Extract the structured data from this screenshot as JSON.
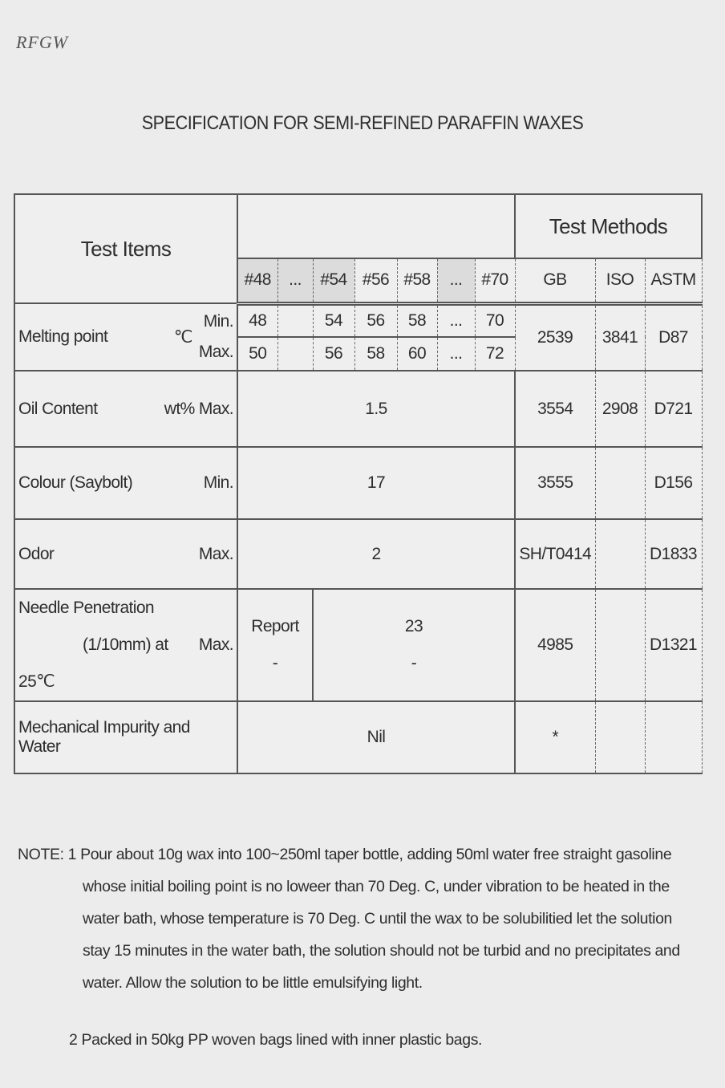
{
  "logo": "RFGW",
  "title": "SPECIFICATION FOR SEMI-REFINED PARAFFIN WAXES",
  "table": {
    "test_items_header": "Test Items",
    "test_methods_header": "Test Methods",
    "grades": [
      "#48",
      "...",
      "#54",
      "#56",
      "#58",
      "...",
      "#70"
    ],
    "methods": [
      "GB",
      "ISO",
      "ASTM"
    ],
    "melting": {
      "label": "Melting point",
      "unit": "℃",
      "min_label": "Min.",
      "max_label": "Max.",
      "min": [
        "48",
        "",
        "54",
        "56",
        "58",
        "...",
        "70"
      ],
      "max": [
        "50",
        "",
        "56",
        "58",
        "60",
        "...",
        "72"
      ],
      "gb": "2539",
      "iso": "3841",
      "astm": "D87"
    },
    "oil": {
      "label": "Oil Content",
      "unit": "wt%",
      "limit": "Max.",
      "value": "1.5",
      "gb": "3554",
      "iso": "2908",
      "astm": "D721"
    },
    "colour": {
      "label": "Colour (Saybolt)",
      "limit": "Min.",
      "value": "17",
      "gb": "3555",
      "iso": "",
      "astm": "D156"
    },
    "odor": {
      "label": "Odor",
      "limit": "Max.",
      "value": "2",
      "gb": "SH/T0414",
      "iso": "",
      "astm": "D1833"
    },
    "needle": {
      "label": "Needle Penetration",
      "label2": "(1/10mm) at 25℃",
      "limit": "Max.",
      "report": "Report",
      "report_sub": "-",
      "value": "23",
      "value_sub": "-",
      "gb": "4985",
      "iso": "",
      "astm": "D1321"
    },
    "mech": {
      "label": "Mechanical Impurity and Water",
      "value": "Nil",
      "gb": "*",
      "iso": "",
      "astm": ""
    }
  },
  "notes": {
    "prefix": "NOTE: 1",
    "n1_lines": [
      "Pour about 10g wax into 100~250ml taper bottle, adding 50ml water free straight gasoline",
      "whose initial boiling point is no loweer than 70 Deg. C, under vibration to be heated in the",
      "water bath, whose temperature is 70 Deg. C until the wax to be solubilitied let the solution",
      "stay 15 minutes in the water bath, the solution should not be turbid and no precipitates and",
      "water. Allow the solution to be little emulsifying light."
    ],
    "n2": "2 Packed in 50kg PP woven bags lined with inner plastic bags."
  }
}
